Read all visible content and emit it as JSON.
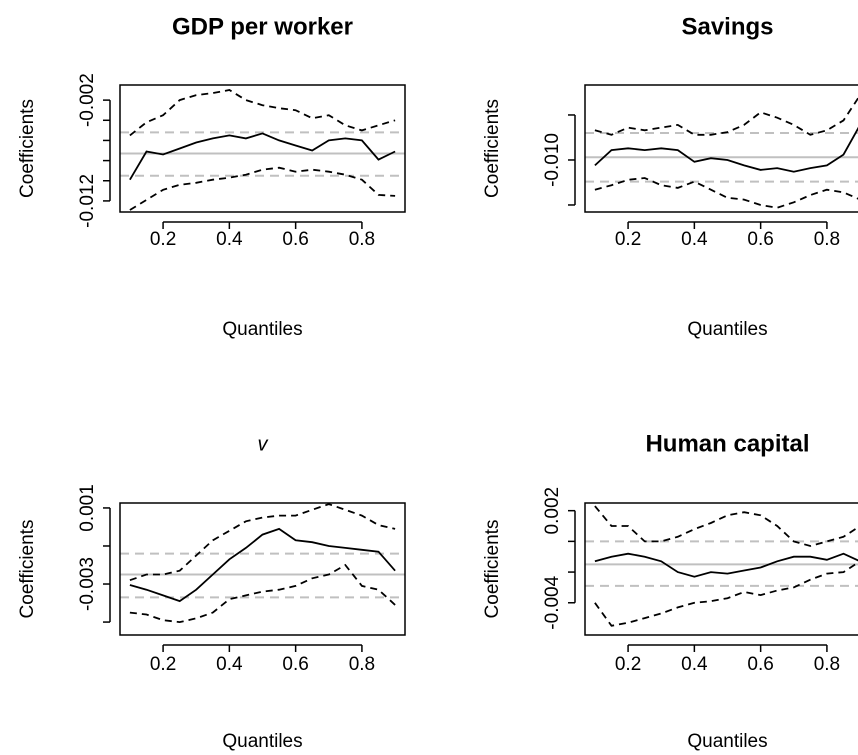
{
  "chart_data": [
    {
      "type": "line",
      "title": "GDP per worker",
      "x_label": "Quantiles",
      "y_label": "Coefficients",
      "x": [
        0.1,
        0.15,
        0.2,
        0.25,
        0.3,
        0.35,
        0.4,
        0.45,
        0.5,
        0.55,
        0.6,
        0.65,
        0.7,
        0.75,
        0.8,
        0.85,
        0.9
      ],
      "series": [
        {
          "color": "#000000",
          "dashed": false,
          "values": [
            -0.0099,
            -0.0071,
            -0.0074,
            -0.0068,
            -0.0062,
            -0.0058,
            -0.0055,
            -0.0058,
            -0.0053,
            -0.006,
            -0.0065,
            -0.007,
            -0.006,
            -0.0058,
            -0.006,
            -0.0079,
            -0.0071
          ]
        },
        {
          "color": "#000000",
          "dashed": true,
          "values": [
            -0.0055,
            -0.0042,
            -0.0035,
            -0.002,
            -0.0015,
            -0.0013,
            -0.001,
            -0.002,
            -0.0025,
            -0.0028,
            -0.003,
            -0.0038,
            -0.0035,
            -0.0045,
            -0.005,
            -0.0045,
            -0.004
          ]
        },
        {
          "color": "#000000",
          "dashed": true,
          "values": [
            -0.0129,
            -0.0119,
            -0.0109,
            -0.0104,
            -0.0102,
            -0.0099,
            -0.0097,
            -0.0094,
            -0.0089,
            -0.0087,
            -0.0091,
            -0.0089,
            -0.0091,
            -0.0094,
            -0.0099,
            -0.0114,
            -0.0115
          ]
        }
      ],
      "reference_lines": {
        "color": "#c0c0c0",
        "lines": [
          {
            "value": -0.0073,
            "dashed": false
          },
          {
            "value": -0.0052,
            "dashed": true
          },
          {
            "value": -0.0095,
            "dashed": true
          }
        ]
      },
      "xlim": [
        0.07,
        0.93
      ],
      "xticks": [
        0.2,
        0.4,
        0.6,
        0.8
      ],
      "ylim": [
        -0.0131,
        -0.0005
      ],
      "yticks": [
        -0.012,
        -0.002
      ],
      "yminor": [
        -0.01,
        -0.008,
        -0.006,
        -0.004
      ]
    },
    {
      "type": "line",
      "title": "Savings",
      "x_label": "Quantiles",
      "y_label": "Coefficients",
      "x": [
        0.1,
        0.15,
        0.2,
        0.25,
        0.3,
        0.35,
        0.4,
        0.45,
        0.5,
        0.55,
        0.6,
        0.65,
        0.7,
        0.75,
        0.8,
        0.85,
        0.9
      ],
      "series": [
        {
          "color": "#000000",
          "dashed": false,
          "values": [
            -0.0106,
            -0.0089,
            -0.0087,
            -0.0089,
            -0.0087,
            -0.0089,
            -0.0102,
            -0.0098,
            -0.01,
            -0.0106,
            -0.0111,
            -0.0109,
            -0.0113,
            -0.0109,
            -0.0106,
            -0.0094,
            -0.0061
          ]
        },
        {
          "color": "#000000",
          "dashed": true,
          "values": [
            -0.0067,
            -0.0072,
            -0.0064,
            -0.0067,
            -0.0064,
            -0.0061,
            -0.0072,
            -0.0072,
            -0.0069,
            -0.0061,
            -0.0047,
            -0.0053,
            -0.0061,
            -0.0072,
            -0.0067,
            -0.0056,
            -0.0028
          ]
        },
        {
          "color": "#000000",
          "dashed": true,
          "values": [
            -0.0133,
            -0.0128,
            -0.0122,
            -0.012,
            -0.0128,
            -0.0131,
            -0.0124,
            -0.0133,
            -0.0142,
            -0.0144,
            -0.015,
            -0.0153,
            -0.0147,
            -0.0139,
            -0.0133,
            -0.0136,
            -0.0144
          ]
        }
      ],
      "reference_lines": {
        "color": "#c0c0c0",
        "lines": [
          {
            "value": -0.0097,
            "dashed": false
          },
          {
            "value": -0.007,
            "dashed": true
          },
          {
            "value": -0.0124,
            "dashed": true
          }
        ]
      },
      "xlim": [
        0.07,
        0.93
      ],
      "xticks": [
        0.2,
        0.4,
        0.6,
        0.8
      ],
      "ylim": [
        -0.01578,
        -0.00167
      ],
      "yticks": [
        {
          "value": -0.01,
          "label": "-0.010"
        }
      ],
      "yminor": [
        -0.005,
        -0.015
      ]
    },
    {
      "type": "line",
      "title": "v",
      "title_italic": true,
      "x_label": "Quantiles",
      "y_label": "Coefficients",
      "x": [
        0.1,
        0.15,
        0.2,
        0.25,
        0.3,
        0.35,
        0.4,
        0.45,
        0.5,
        0.55,
        0.6,
        0.65,
        0.7,
        0.75,
        0.8,
        0.85,
        0.9
      ],
      "series": [
        {
          "color": "#000000",
          "dashed": false,
          "values": [
            -0.00305,
            -0.0033,
            -0.0036,
            -0.0039,
            -0.0033,
            -0.0025,
            -0.0017,
            -0.0011,
            -0.0004,
            -0.0001,
            -0.0007,
            -0.0008,
            -0.001,
            -0.0011,
            -0.0012,
            -0.0013,
            -0.0023
          ]
        },
        {
          "color": "#000000",
          "dashed": true,
          "values": [
            -0.0028,
            -0.0025,
            -0.0025,
            -0.0023,
            -0.0015,
            -0.0007,
            -0.0002,
            0.0003,
            0.0005,
            0.0006,
            0.0006,
            0.0009,
            0.0012,
            0.0009,
            0.0006,
            0.0001,
            -0.0001
          ]
        },
        {
          "color": "#000000",
          "dashed": true,
          "values": [
            -0.0045,
            -0.0046,
            -0.0049,
            -0.005,
            -0.0048,
            -0.0045,
            -0.0038,
            -0.0036,
            -0.0034,
            -0.0033,
            -0.0031,
            -0.0027,
            -0.0025,
            -0.002,
            -0.0031,
            -0.0033,
            -0.0041
          ]
        }
      ],
      "reference_lines": {
        "color": "#c0c0c0",
        "lines": [
          {
            "value": -0.0025,
            "dashed": false
          },
          {
            "value": -0.0014,
            "dashed": true
          },
          {
            "value": -0.0037,
            "dashed": true
          }
        ]
      },
      "xlim": [
        0.07,
        0.93
      ],
      "xticks": [
        0.2,
        0.4,
        0.6,
        0.8
      ],
      "ylim": [
        -0.00568,
        0.00126
      ],
      "yticks": [
        -0.003,
        0.001
      ],
      "yminor": [
        -0.005,
        -0.001
      ]
    },
    {
      "type": "line",
      "title": "Human capital",
      "x_label": "Quantiles",
      "y_label": "Coefficients",
      "x": [
        0.1,
        0.15,
        0.2,
        0.25,
        0.3,
        0.35,
        0.4,
        0.45,
        0.5,
        0.55,
        0.6,
        0.65,
        0.7,
        0.75,
        0.8,
        0.85,
        0.9
      ],
      "series": [
        {
          "color": "#000000",
          "dashed": false,
          "values": [
            -0.0013,
            -0.001,
            -0.0008,
            -0.001,
            -0.0013,
            -0.002,
            -0.0023,
            -0.002,
            -0.0021,
            -0.0019,
            -0.0017,
            -0.0013,
            -0.001,
            -0.001,
            -0.0012,
            -0.0008,
            -0.0013
          ]
        },
        {
          "color": "#000000",
          "dashed": true,
          "values": [
            0.0023,
            0.001,
            0.001,
            0,
            0,
            0.0003,
            0.0008,
            0.0012,
            0.0017,
            0.0019,
            0.0017,
            0.001,
            0,
            -0.0003,
            0,
            0.0003,
            0.001
          ]
        },
        {
          "color": "#000000",
          "dashed": true,
          "values": [
            -0.004,
            -0.0055,
            -0.0053,
            -0.005,
            -0.0047,
            -0.0043,
            -0.004,
            -0.0039,
            -0.0037,
            -0.0033,
            -0.0035,
            -0.0032,
            -0.003,
            -0.0025,
            -0.0021,
            -0.002,
            -0.0013
          ]
        }
      ],
      "reference_lines": {
        "color": "#c0c0c0",
        "lines": [
          {
            "value": -0.0015,
            "dashed": false
          },
          {
            "value": 0,
            "dashed": true
          },
          {
            "value": -0.0029,
            "dashed": true
          }
        ]
      },
      "xlim": [
        0.07,
        0.93
      ],
      "xticks": [
        0.2,
        0.4,
        0.6,
        0.8
      ],
      "ylim": [
        -0.0061,
        0.0025
      ],
      "yticks": [
        -0.004,
        0.002
      ],
      "yminor": [
        0,
        -0.002
      ]
    }
  ]
}
